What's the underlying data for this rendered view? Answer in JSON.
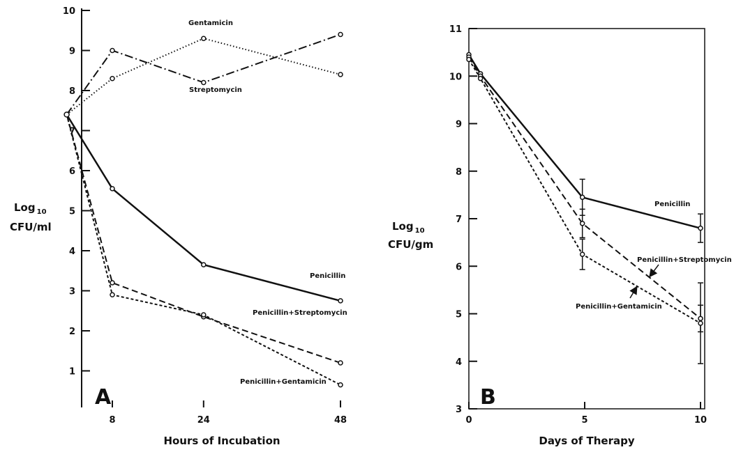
{
  "chart_data": [
    {
      "type": "line",
      "panel_label": "A",
      "xlabel": "Hours of Incubation",
      "ylabel_main": "Log",
      "ylabel_sub": "10",
      "ylabel_unit": "CFU/ml",
      "xlim": [
        -2,
        52
      ],
      "ylim": [
        0,
        10
      ],
      "x_ticks": [
        8,
        24,
        48
      ],
      "y_ticks": [
        1,
        2,
        3,
        4,
        5,
        6,
        7,
        8,
        9,
        10
      ],
      "series": [
        {
          "name": "Gentamicin",
          "style": "dotted",
          "x": [
            0,
            8,
            24,
            48
          ],
          "y": [
            7.4,
            8.3,
            9.3,
            8.4
          ]
        },
        {
          "name": "Streptomycin",
          "style": "dashdot",
          "x": [
            0,
            8,
            24,
            48
          ],
          "y": [
            7.4,
            9.0,
            8.2,
            9.4
          ]
        },
        {
          "name": "Penicillin",
          "style": "solid",
          "x": [
            0,
            8,
            24,
            48
          ],
          "y": [
            7.4,
            5.55,
            3.65,
            2.75
          ]
        },
        {
          "name": "Penicillin+Streptomycin",
          "style": "dashed",
          "x": [
            0,
            8,
            24,
            48
          ],
          "y": [
            7.4,
            3.2,
            2.35,
            1.2
          ]
        },
        {
          "name": "Penicillin+Gentamicin",
          "style": "short-dashed",
          "x": [
            0,
            8,
            24,
            48
          ],
          "y": [
            7.4,
            2.9,
            2.4,
            0.65
          ]
        }
      ]
    },
    {
      "type": "line",
      "panel_label": "B",
      "xlabel": "Days of Therapy",
      "ylabel_main": "Log",
      "ylabel_sub": "10",
      "ylabel_unit": "CFU/gm",
      "xlim": [
        0,
        10.5
      ],
      "ylim": [
        3,
        11
      ],
      "x_ticks": [
        0,
        5,
        10
      ],
      "y_ticks": [
        3,
        4,
        5,
        6,
        7,
        8,
        9,
        10,
        11
      ],
      "series": [
        {
          "name": "Penicillin",
          "style": "solid",
          "x": [
            0,
            0.5,
            4.9,
            10
          ],
          "y": [
            10.45,
            10.05,
            7.45,
            6.8
          ],
          "err": [
            0,
            0,
            0.38,
            0.3
          ]
        },
        {
          "name": "Penicillin+Streptomycin",
          "style": "dashed",
          "x": [
            0,
            0.5,
            4.9,
            10
          ],
          "y": [
            10.4,
            10.0,
            6.9,
            4.9
          ],
          "err": [
            0,
            0,
            0.3,
            0.28
          ]
        },
        {
          "name": "Penicillin+Gentamicin",
          "style": "short-dashed",
          "x": [
            0,
            0.5,
            4.9,
            10
          ],
          "y": [
            10.35,
            9.95,
            6.25,
            4.8
          ],
          "err": [
            0,
            0,
            0.32,
            0.85
          ]
        }
      ]
    }
  ]
}
